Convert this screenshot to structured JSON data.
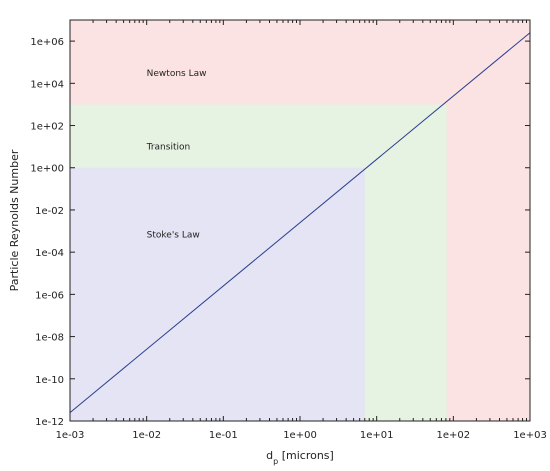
{
  "chart_data": {
    "type": "line",
    "title": "",
    "xlabel_main": "d",
    "xlabel_sub": "p",
    "xlabel_unit": " [microns]",
    "ylabel": "Particle Reynolds Number",
    "xscale": "log",
    "yscale": "log",
    "xlim": [
      0.001,
      1000
    ],
    "ylim": [
      1e-12,
      10000000.0
    ],
    "grid": false,
    "x_ticks": [
      {
        "value": 0.001,
        "label": "1e-03"
      },
      {
        "value": 0.01,
        "label": "1e-02"
      },
      {
        "value": 0.1,
        "label": "1e-01"
      },
      {
        "value": 1,
        "label": "1e+00"
      },
      {
        "value": 10,
        "label": "1e+01"
      },
      {
        "value": 100,
        "label": "1e+02"
      },
      {
        "value": 1000,
        "label": "1e+03"
      }
    ],
    "y_ticks": [
      {
        "value": 1e-12,
        "label": "1e-12"
      },
      {
        "value": 1e-10,
        "label": "1e-10"
      },
      {
        "value": 1e-08,
        "label": "1e-08"
      },
      {
        "value": 1e-06,
        "label": "1e-06"
      },
      {
        "value": 0.0001,
        "label": "1e-04"
      },
      {
        "value": 0.01,
        "label": "1e-02"
      },
      {
        "value": 1,
        "label": "1e+00"
      },
      {
        "value": 100,
        "label": "1e+02"
      },
      {
        "value": 10000,
        "label": "1e+04"
      },
      {
        "value": 1000000,
        "label": "1e+06"
      }
    ],
    "series": [
      {
        "x": [
          0.001,
          1000
        ],
        "y": [
          2.5e-12,
          2500000.0
        ],
        "color": "#2b3f8f"
      }
    ],
    "regions": [
      {
        "label": "Newtons Law",
        "x_range": [
          0.001,
          1000
        ],
        "y_range": [
          1e-12,
          10000000.0
        ],
        "color": "#fbe3e3",
        "label_at": {
          "x": 0.01,
          "y": 30000
        }
      },
      {
        "label": "Transition",
        "x_range": [
          0.001,
          82
        ],
        "y_range": [
          1e-12,
          1000
        ],
        "color": "#e6f2e2",
        "label_at": {
          "x": 0.01,
          "y": 10
        }
      },
      {
        "label": "Stoke's Law",
        "x_range": [
          0.001,
          7
        ],
        "y_range": [
          1e-12,
          1
        ],
        "color": "#e4e4f4",
        "label_at": {
          "x": 0.01,
          "y": 0.0007
        }
      }
    ]
  }
}
